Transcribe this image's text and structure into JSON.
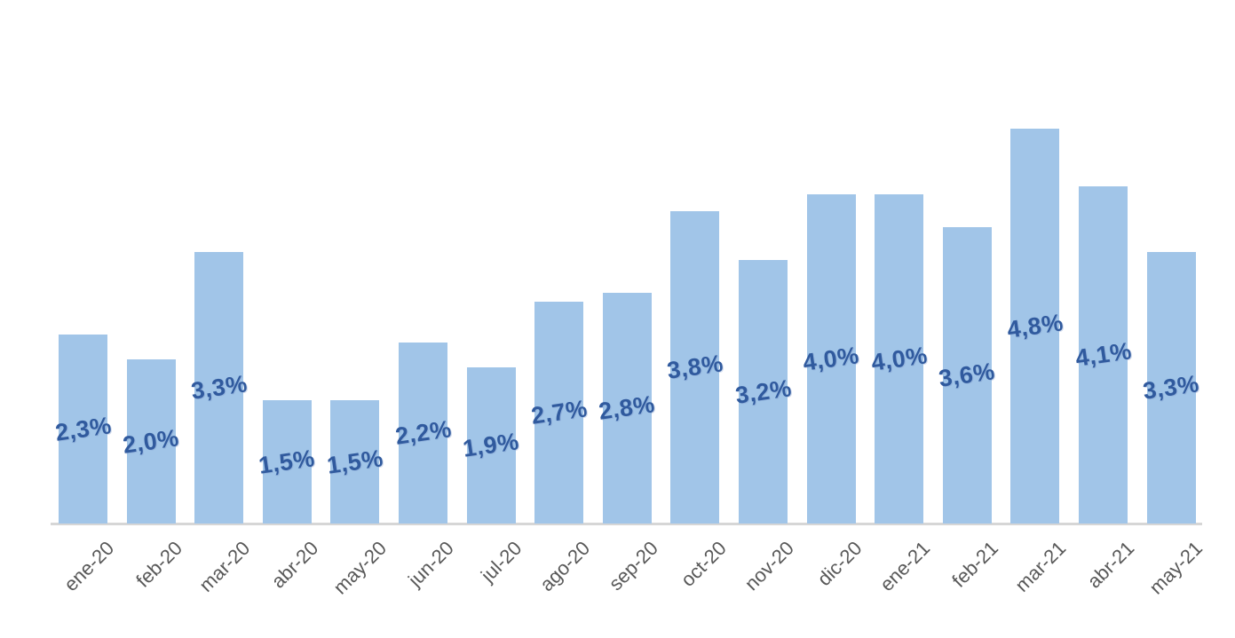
{
  "chart_data": {
    "type": "bar",
    "title": "",
    "xlabel": "",
    "ylabel": "",
    "categories": [
      "ene-20",
      "feb-20",
      "mar-20",
      "abr-20",
      "may-20",
      "jun-20",
      "jul-20",
      "ago-20",
      "sep-20",
      "oct-20",
      "nov-20",
      "dic-20",
      "ene-21",
      "feb-21",
      "mar-21",
      "abr-21",
      "may-21"
    ],
    "values": [
      2.3,
      2.0,
      3.3,
      1.5,
      1.5,
      2.2,
      1.9,
      2.7,
      2.8,
      3.8,
      3.2,
      4.0,
      4.0,
      3.6,
      4.8,
      4.1,
      3.3
    ],
    "value_labels": [
      "2,3%",
      "2,0%",
      "3,3%",
      "1,5%",
      "1,5%",
      "2,2%",
      "1,9%",
      "2,7%",
      "2,8%",
      "3,8%",
      "3,2%",
      "4,0%",
      "4,0%",
      "3,6%",
      "4,8%",
      "4,1%",
      "3,3%"
    ],
    "ylim": [
      0,
      5
    ],
    "grid": false,
    "legend_position": "none",
    "data_label_position": "inside-center",
    "colors": {
      "bar_fill": "#A1C5E8",
      "value_label": "#305A9E",
      "axis_tick_label": "#595959",
      "axis_line": "#D6D6D6",
      "background": "#FFFFFF"
    }
  }
}
